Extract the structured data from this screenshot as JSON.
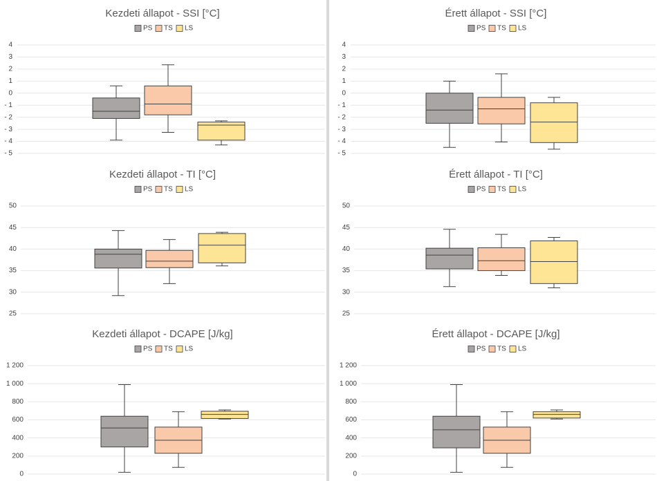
{
  "colors": {
    "PS": "#aaa5a5",
    "TS": "#f9c9a9",
    "LS": "#fee595",
    "outline": "#404040",
    "grid": "#e6e6e6",
    "title": "#595959",
    "tick": "#404040"
  },
  "chart_data": [
    {
      "type": "box",
      "title": "Kezdeti állapot - SSI [°C]",
      "legend": [
        "PS",
        "TS",
        "LS"
      ],
      "legend_position": "top",
      "ylim": [
        -5,
        4
      ],
      "yticks": [
        4,
        3,
        2,
        1,
        0,
        -1,
        -2,
        -3,
        -4,
        -5
      ],
      "ytick_labels": [
        "4",
        "3",
        "2",
        "1",
        "0",
        "- 1",
        "- 2",
        "- 3",
        "- 4",
        "- 5"
      ],
      "grid": true,
      "series": [
        {
          "name": "PS",
          "min": -3.9,
          "q1": -2.1,
          "median": -1.5,
          "q3": -0.4,
          "max": 0.6
        },
        {
          "name": "TS",
          "min": -3.25,
          "q1": -1.8,
          "median": -0.9,
          "q3": 0.6,
          "max": 2.35
        },
        {
          "name": "LS",
          "min": -4.3,
          "q1": -3.9,
          "median": -2.65,
          "q3": -2.4,
          "max": -2.3
        }
      ]
    },
    {
      "type": "box",
      "title": "Érett állapot - SSI [°C]",
      "legend": [
        "PS",
        "TS",
        "LS"
      ],
      "legend_position": "top",
      "ylim": [
        -5,
        4
      ],
      "yticks": [
        4,
        3,
        2,
        1,
        0,
        -1,
        -2,
        -3,
        -4,
        -5
      ],
      "ytick_labels": [
        "4",
        "3",
        "2",
        "1",
        "0",
        "- 1",
        "- 2",
        "- 3",
        "- 4",
        "- 5"
      ],
      "grid": true,
      "series": [
        {
          "name": "PS",
          "min": -4.5,
          "q1": -2.5,
          "median": -1.4,
          "q3": 0.0,
          "max": 1.0
        },
        {
          "name": "TS",
          "min": -4.05,
          "q1": -2.55,
          "median": -1.3,
          "q3": -0.35,
          "max": 1.6
        },
        {
          "name": "LS",
          "min": -4.65,
          "q1": -4.1,
          "median": -2.4,
          "q3": -0.8,
          "max": -0.35
        }
      ]
    },
    {
      "type": "box",
      "title": "Kezdeti állapot - TI [°C]",
      "legend": [
        "PS",
        "TS",
        "LS"
      ],
      "legend_position": "top",
      "ylim": [
        25,
        50
      ],
      "yticks": [
        50,
        45,
        40,
        35,
        30,
        25
      ],
      "ytick_labels": [
        "50",
        "45",
        "40",
        "35",
        "30",
        "25"
      ],
      "grid": true,
      "series": [
        {
          "name": "PS",
          "min": 29.2,
          "q1": 35.6,
          "median": 38.8,
          "q3": 40.0,
          "max": 44.3
        },
        {
          "name": "TS",
          "min": 32.0,
          "q1": 35.7,
          "median": 37.2,
          "q3": 39.7,
          "max": 42.2
        },
        {
          "name": "LS",
          "min": 36.1,
          "q1": 36.8,
          "median": 40.9,
          "q3": 43.6,
          "max": 43.9
        }
      ]
    },
    {
      "type": "box",
      "title": "Érett állapot - TI [°C]",
      "legend": [
        "PS",
        "TS",
        "LS"
      ],
      "legend_position": "top",
      "ylim": [
        25,
        50
      ],
      "yticks": [
        50,
        45,
        40,
        35,
        30,
        25
      ],
      "ytick_labels": [
        "50",
        "45",
        "40",
        "35",
        "30",
        "25"
      ],
      "grid": true,
      "series": [
        {
          "name": "PS",
          "min": 31.3,
          "q1": 35.4,
          "median": 38.6,
          "q3": 40.2,
          "max": 44.6
        },
        {
          "name": "TS",
          "min": 33.9,
          "q1": 35.0,
          "median": 37.3,
          "q3": 40.3,
          "max": 43.4
        },
        {
          "name": "LS",
          "min": 31.0,
          "q1": 32.0,
          "median": 37.1,
          "q3": 41.9,
          "max": 42.7
        }
      ]
    },
    {
      "type": "box",
      "title": "Kezdeti állapot - DCAPE [J/kg]",
      "legend": [
        "PS",
        "TS",
        "LS"
      ],
      "legend_position": "top",
      "ylim": [
        0,
        1200
      ],
      "yticks": [
        1200,
        1000,
        800,
        600,
        400,
        200,
        0
      ],
      "ytick_labels": [
        "1 200",
        "1 000",
        "800",
        "600",
        "400",
        "200",
        "0"
      ],
      "grid": true,
      "series": [
        {
          "name": "PS",
          "min": 20,
          "q1": 300,
          "median": 510,
          "q3": 640,
          "max": 990
        },
        {
          "name": "TS",
          "min": 75,
          "q1": 230,
          "median": 375,
          "q3": 520,
          "max": 690
        },
        {
          "name": "LS",
          "min": 610,
          "q1": 615,
          "median": 660,
          "q3": 695,
          "max": 710
        }
      ]
    },
    {
      "type": "box",
      "title": "Érett állapot - DCAPE [J/kg]",
      "legend": [
        "PS",
        "TS",
        "LS"
      ],
      "legend_position": "top",
      "ylim": [
        0,
        1200
      ],
      "yticks": [
        1200,
        1000,
        800,
        600,
        400,
        200,
        0
      ],
      "ytick_labels": [
        "1 200",
        "1 000",
        "800",
        "600",
        "400",
        "200",
        "0"
      ],
      "grid": true,
      "series": [
        {
          "name": "PS",
          "min": 20,
          "q1": 290,
          "median": 490,
          "q3": 640,
          "max": 990
        },
        {
          "name": "TS",
          "min": 75,
          "q1": 230,
          "median": 375,
          "q3": 520,
          "max": 690
        },
        {
          "name": "LS",
          "min": 610,
          "q1": 620,
          "median": 660,
          "q3": 690,
          "max": 710
        }
      ]
    }
  ]
}
